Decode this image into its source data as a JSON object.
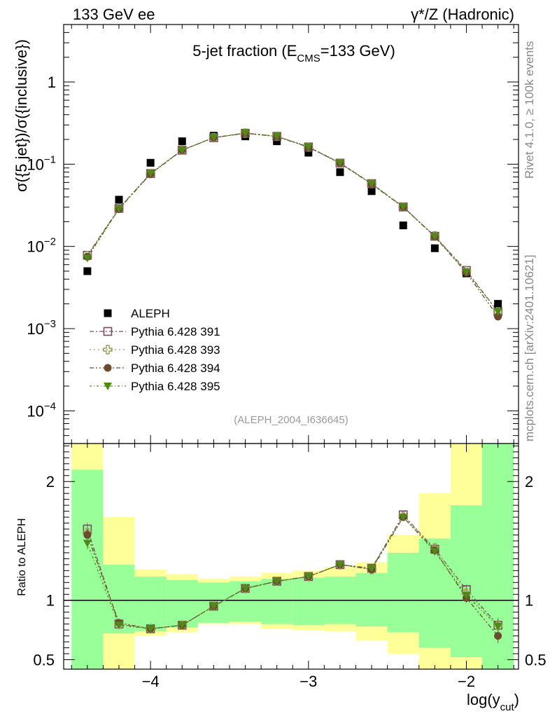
{
  "header": {
    "left": "133 GeV ee",
    "right": "γ*/Z (Hadronic)"
  },
  "side_labels": {
    "rivet": "Rivet 4.1.0, ≥ 100k events",
    "mcplots": "mcplots.cern.ch [arXiv:2401.10621]"
  },
  "chart_data": [
    {
      "type": "scatter",
      "panel": "main",
      "title": "5-jet fraction (E_CMS=133 GeV)",
      "title_parts": {
        "pre": "5-jet fraction (E",
        "sub": "CMS",
        "post": "=133 GeV)"
      },
      "ylabel": "σ({5 jet})/σ({inclusive})",
      "yscale": "log",
      "ylim": [
        4e-05,
        5
      ],
      "xlim": [
        -4.55,
        -1.67
      ],
      "ytick_labels": [
        {
          "value": 1,
          "base": "1",
          "exp": ""
        },
        {
          "value": 0.1,
          "base": "10",
          "exp": "−1"
        },
        {
          "value": 0.01,
          "base": "10",
          "exp": "−2"
        },
        {
          "value": 0.001,
          "base": "10",
          "exp": "−3"
        },
        {
          "value": 0.0001,
          "base": "10",
          "exp": "−4"
        }
      ],
      "analysis_label": "(ALEPH_2004_I636645)",
      "x": [
        -4.4,
        -4.2,
        -4.0,
        -3.8,
        -3.6,
        -3.4,
        -3.2,
        -3.0,
        -2.8,
        -2.6,
        -2.4,
        -2.2,
        -2.0,
        -1.8
      ],
      "series": [
        {
          "name": "ALEPH",
          "color": "#000000",
          "marker": "square",
          "values": [
            0.005,
            0.037,
            0.104,
            0.19,
            0.222,
            0.218,
            0.19,
            0.138,
            0.08,
            0.047,
            0.018,
            0.0095,
            0.0047,
            0.002
          ]
        },
        {
          "name": "Pythia 6.428 391",
          "color": "#7b4a63",
          "marker": "open-square",
          "values": [
            0.0078,
            0.029,
            0.077,
            0.148,
            0.21,
            0.238,
            0.218,
            0.162,
            0.103,
            0.058,
            0.0302,
            0.0133,
            0.0051,
            0.0016
          ]
        },
        {
          "name": "Pythia 6.428 393",
          "color": "#9c9a5a",
          "marker": "open-cross",
          "values": [
            0.0077,
            0.029,
            0.077,
            0.149,
            0.21,
            0.239,
            0.219,
            0.162,
            0.103,
            0.058,
            0.0302,
            0.0134,
            0.005,
            0.0016
          ]
        },
        {
          "name": "Pythia 6.428 394",
          "color": "#6b4a2e",
          "marker": "circle",
          "values": [
            0.0075,
            0.0285,
            0.076,
            0.148,
            0.21,
            0.238,
            0.217,
            0.161,
            0.103,
            0.057,
            0.0301,
            0.0131,
            0.0048,
            0.0014
          ]
        },
        {
          "name": "Pythia 6.428 395",
          "color": "#4f8a16",
          "marker": "triangle-down",
          "values": [
            0.0072,
            0.0287,
            0.077,
            0.149,
            0.211,
            0.24,
            0.219,
            0.163,
            0.104,
            0.058,
            0.0303,
            0.0132,
            0.0049,
            0.0016
          ]
        }
      ]
    },
    {
      "type": "scatter",
      "panel": "ratio",
      "ylabel": "Ratio to ALEPH",
      "xlabel": "log(y_cut)",
      "xlabel_parts": {
        "pre": "log(y",
        "sub": "cut",
        "post": ")"
      },
      "ylim": [
        0.42,
        2.32
      ],
      "ytick_labels": [
        {
          "value": 2,
          "text": "2"
        },
        {
          "value": 1,
          "text": "1"
        },
        {
          "value": 0.5,
          "text": "0.5"
        }
      ],
      "xtick_labels": [
        {
          "value": -4,
          "text": "−4"
        },
        {
          "value": -3,
          "text": "−3"
        },
        {
          "value": -2,
          "text": "−2"
        }
      ],
      "bands": {
        "edges": [
          -4.5,
          -4.3,
          -4.1,
          -3.9,
          -3.7,
          -3.5,
          -3.3,
          -3.1,
          -2.9,
          -2.7,
          -2.5,
          -2.3,
          -2.1,
          -1.9,
          -1.7
        ],
        "green": [
          [
            0.42,
            2.1
          ],
          [
            0.72,
            1.3
          ],
          [
            0.74,
            1.2
          ],
          [
            0.77,
            1.17
          ],
          [
            0.81,
            1.15
          ],
          [
            0.82,
            1.16
          ],
          [
            0.8,
            1.18
          ],
          [
            0.79,
            1.19
          ],
          [
            0.8,
            1.2
          ],
          [
            0.78,
            1.23
          ],
          [
            0.73,
            1.4
          ],
          [
            0.6,
            1.52
          ],
          [
            0.52,
            1.8
          ],
          [
            0.42,
            2.32
          ]
        ],
        "yellow": [
          [
            0.42,
            2.32
          ],
          [
            0.42,
            1.7
          ],
          [
            0.7,
            1.26
          ],
          [
            0.73,
            1.22
          ],
          [
            0.8,
            1.18
          ],
          [
            0.8,
            1.2
          ],
          [
            0.76,
            1.23
          ],
          [
            0.75,
            1.25
          ],
          [
            0.74,
            1.28
          ],
          [
            0.66,
            1.32
          ],
          [
            0.55,
            1.55
          ],
          [
            0.42,
            1.9
          ],
          [
            0.42,
            2.32
          ],
          [
            0.42,
            2.32
          ]
        ]
      },
      "series": [
        {
          "name": "Pythia 6.428 391",
          "values": [
            1.6,
            0.8,
            0.76,
            0.79,
            0.95,
            1.1,
            1.16,
            1.2,
            1.3,
            1.27,
            1.72,
            1.43,
            1.09,
            0.79
          ],
          "err": [
            0.05,
            0.02,
            0.02,
            0.01,
            0.01,
            0.01,
            0.01,
            0.01,
            0.01,
            0.01,
            0.02,
            0.03,
            0.04,
            0.06
          ]
        },
        {
          "name": "Pythia 6.428 393",
          "values": [
            1.57,
            0.8,
            0.76,
            0.79,
            0.95,
            1.1,
            1.16,
            1.2,
            1.3,
            1.26,
            1.71,
            1.44,
            1.06,
            0.79
          ],
          "err": [
            0.05,
            0.02,
            0.02,
            0.01,
            0.01,
            0.01,
            0.01,
            0.01,
            0.01,
            0.01,
            0.02,
            0.03,
            0.04,
            0.06
          ]
        },
        {
          "name": "Pythia 6.428 394",
          "values": [
            1.55,
            0.81,
            0.76,
            0.79,
            0.95,
            1.1,
            1.16,
            1.2,
            1.3,
            1.26,
            1.7,
            1.42,
            1.02,
            0.7
          ],
          "err": [
            0.05,
            0.02,
            0.02,
            0.01,
            0.01,
            0.01,
            0.01,
            0.01,
            0.01,
            0.01,
            0.02,
            0.03,
            0.04,
            0.06
          ]
        },
        {
          "name": "Pythia 6.428 395",
          "values": [
            1.48,
            0.79,
            0.76,
            0.79,
            0.95,
            1.1,
            1.16,
            1.2,
            1.3,
            1.27,
            1.7,
            1.41,
            1.04,
            0.78
          ],
          "err": [
            0.05,
            0.02,
            0.02,
            0.01,
            0.01,
            0.01,
            0.01,
            0.01,
            0.01,
            0.01,
            0.02,
            0.03,
            0.04,
            0.06
          ]
        }
      ]
    }
  ]
}
